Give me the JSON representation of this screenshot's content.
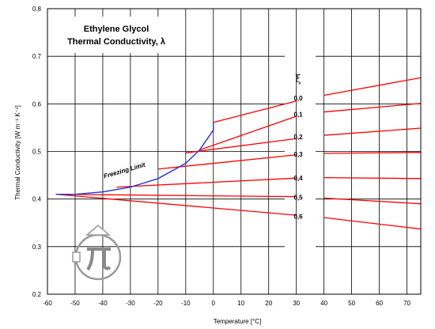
{
  "chart_data": {
    "type": "line",
    "title": [
      "Ethylene Glycol",
      "Thermal Conductivity, λ"
    ],
    "xlabel": "Temperature [°C]",
    "ylabel": "Thermal Conductivity [W m⁻¹ K⁻¹]",
    "xlim": [
      -60,
      75
    ],
    "ylim": [
      0.2,
      0.8
    ],
    "x_ticks": [
      -60,
      -50,
      -40,
      -30,
      -20,
      -10,
      0,
      10,
      20,
      30,
      40,
      50,
      60,
      70
    ],
    "y_ticks": [
      "0.2",
      "0.3",
      "0.4",
      "0.5",
      "0.6",
      "0.7",
      "0.8"
    ],
    "grid": true,
    "legend_symbol": "ξ",
    "series": [
      {
        "name": "0,0",
        "color": "#ff0000",
        "x": [
          0,
          30,
          40,
          75
        ],
        "y": [
          0.561,
          0.606,
          0.618,
          0.655
        ]
      },
      {
        "name": "0,1",
        "color": "#ff0000",
        "x": [
          -5,
          30,
          40,
          75
        ],
        "y": [
          0.503,
          0.574,
          0.583,
          0.601
        ]
      },
      {
        "name": "0,2",
        "color": "#ff0000",
        "x": [
          -10,
          30,
          40,
          75
        ],
        "y": [
          0.497,
          0.527,
          0.534,
          0.549
        ]
      },
      {
        "name": "0,3",
        "color": "#ff0000",
        "x": [
          -20,
          30,
          40,
          75
        ],
        "y": [
          0.463,
          0.493,
          0.496,
          0.498
        ]
      },
      {
        "name": "0,4",
        "color": "#ff0000",
        "x": [
          -35,
          30,
          40,
          75
        ],
        "y": [
          0.425,
          0.444,
          0.445,
          0.443
        ]
      },
      {
        "name": "0,5",
        "color": "#ff0000",
        "x": [
          -57,
          30,
          40,
          75
        ],
        "y": [
          0.41,
          0.405,
          0.402,
          0.39
        ]
      },
      {
        "name": "0,6",
        "color": "#ff0000",
        "x": [
          -57,
          30,
          40,
          75
        ],
        "y": [
          0.41,
          0.366,
          0.361,
          0.337
        ]
      }
    ],
    "freezing_limit": {
      "label": "Freezing Limit",
      "color": "#2233dd",
      "x": [
        -57,
        -50,
        -40,
        -30,
        -20,
        -10,
        -5,
        0,
        0
      ],
      "y": [
        0.41,
        0.41,
        0.415,
        0.425,
        0.443,
        0.475,
        0.503,
        0.545,
        0.561
      ]
    },
    "logo": "pi-logo-icon"
  }
}
